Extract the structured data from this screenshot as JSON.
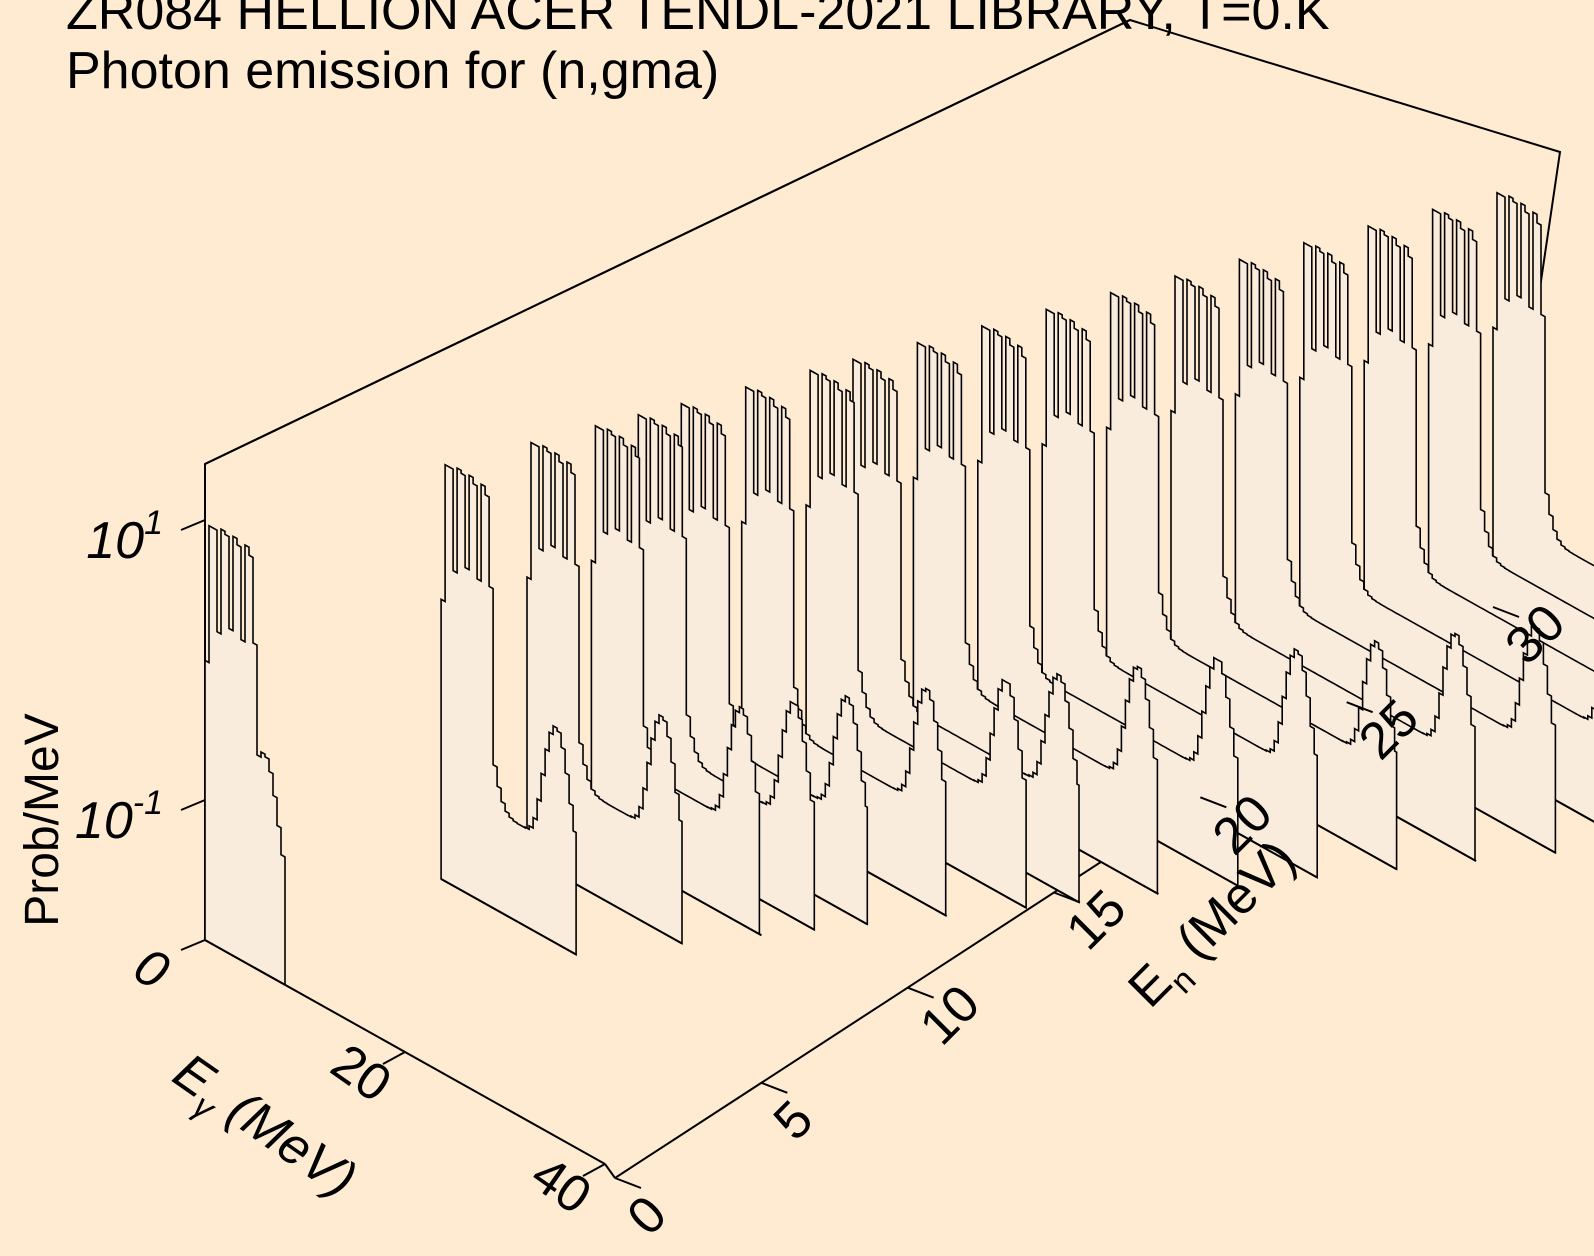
{
  "title_lines": [
    "ZR084 HELLION ACER TENDL-2021 LIBRARY, T=0.K",
    "Photon emission for (n,gma)"
  ],
  "chart_data": {
    "type": "area",
    "subtype": "3d-waterfall-histogram",
    "title": "ZR084 HELLION ACER TENDL-2021 LIBRARY, T=0.K",
    "subtitle": "Photon emission for (n,gma)",
    "zlabel": "Prob/MeV",
    "zscale": "log",
    "zticks": [
      {
        "base": "10",
        "exp": "1",
        "value": 10
      },
      {
        "base": "10",
        "exp": "-1",
        "value": 0.1
      },
      {
        "label": "0",
        "value": 0
      }
    ],
    "xlabel_main": "E",
    "xlabel_sub": "γ",
    "xlabel_unit": " (MeV)",
    "x_ticks": [
      "20",
      "40"
    ],
    "xlim": [
      0,
      40
    ],
    "ylabel_main": "E",
    "ylabel_sub": "n",
    "ylabel_unit": " (MeV)",
    "y_ticks": [
      "0",
      "5",
      "10",
      "15",
      "20",
      "25",
      "30"
    ],
    "ylim": [
      0,
      30
    ],
    "incident_energies_MeV": [
      0.0,
      5.5,
      7.5,
      9.0,
      10.0,
      11.0,
      12.5,
      14.0,
      15.0,
      16.5,
      18.0,
      19.5,
      21.0,
      22.5,
      24.0,
      25.5,
      27.0,
      28.5,
      30.0
    ],
    "spectrum_model": {
      "line_region_MeV": [
        0.2,
        5.0
      ],
      "line_region_height": 10,
      "continuum_peak_MeV": 2.0,
      "continuum_height": 1.0,
      "high_energy_peak_offset_MeV": 2.0,
      "high_energy_peak_height": 0.3,
      "cutoff_offset_MeV": 8.0,
      "bin_width_MeV": 0.4
    },
    "grid": false,
    "legend": "none"
  }
}
